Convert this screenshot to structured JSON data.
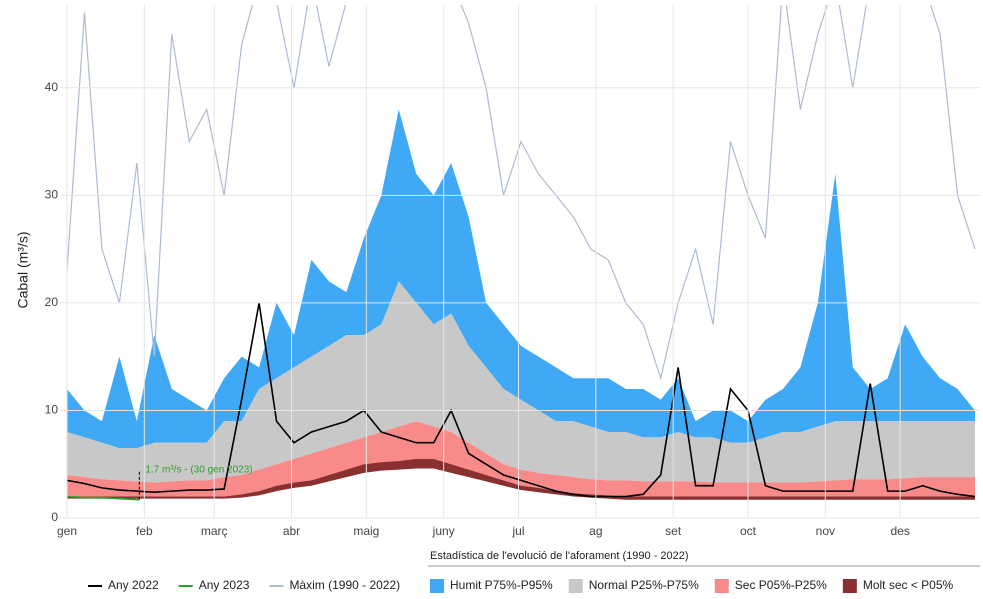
{
  "chart_data": {
    "type": "line",
    "y_label": "Cabal (m³/s)",
    "subtitle": "Estadística de l'evolució de l'aforament (1990 - 2022)",
    "x": [
      0,
      7,
      14,
      21,
      28,
      35,
      42,
      49,
      56,
      63,
      70,
      77,
      84,
      91,
      98,
      105,
      112,
      119,
      126,
      133,
      140,
      147,
      154,
      161,
      168,
      175,
      182,
      189,
      196,
      203,
      210,
      217,
      224,
      231,
      238,
      245,
      252,
      259,
      266,
      273,
      280,
      287,
      294,
      301,
      308,
      315,
      322,
      329,
      336,
      343,
      350,
      357,
      364
    ],
    "xlim": [
      0,
      364
    ],
    "xticks": [
      {
        "value": 0,
        "label": "gen"
      },
      {
        "value": 31,
        "label": "feb"
      },
      {
        "value": 59,
        "label": "març"
      },
      {
        "value": 90,
        "label": "abr"
      },
      {
        "value": 120,
        "label": "maig"
      },
      {
        "value": 151,
        "label": "juny"
      },
      {
        "value": 181,
        "label": "jul"
      },
      {
        "value": 212,
        "label": "ag"
      },
      {
        "value": 243,
        "label": "set"
      },
      {
        "value": 273,
        "label": "oct"
      },
      {
        "value": 304,
        "label": "nov"
      },
      {
        "value": 334,
        "label": "des"
      }
    ],
    "ylim": [
      0,
      47.7
    ],
    "yticks": [
      0,
      10,
      20,
      30,
      40
    ],
    "grid": true,
    "bands": [
      {
        "name": "Humit P75%-P95%",
        "color": "#3fa9f5",
        "lower": [
          8,
          7.5,
          7,
          6.5,
          6.5,
          7,
          7,
          7,
          7,
          9,
          9,
          12,
          13,
          14,
          15,
          16,
          17,
          17,
          18,
          22,
          20,
          18,
          19,
          16,
          14,
          12,
          11,
          10,
          9,
          9,
          8.5,
          8,
          8,
          7.5,
          7.5,
          8,
          7.5,
          7.5,
          7,
          7,
          7.5,
          8,
          8,
          8.5,
          9,
          9,
          9,
          9,
          9,
          9,
          9,
          9,
          9
        ],
        "upper": [
          12,
          10,
          9,
          15,
          9,
          17,
          12,
          11,
          10,
          13,
          15,
          14,
          20,
          17,
          24,
          22,
          21,
          26,
          30,
          38,
          32,
          30,
          33,
          28,
          20,
          18,
          16,
          15,
          14,
          13,
          13,
          13,
          12,
          12,
          11,
          13,
          9,
          10,
          10,
          9,
          11,
          12,
          14,
          20,
          32,
          14,
          12,
          13,
          18,
          15,
          13,
          12,
          10
        ]
      },
      {
        "name": "Normal P25%-P75%",
        "color": "#c8c8c8",
        "lower": [
          4,
          3.8,
          3.6,
          3.5,
          3.4,
          3.3,
          3.4,
          3.5,
          3.5,
          3.8,
          4,
          4.5,
          5,
          5.5,
          6,
          6.5,
          7,
          7.5,
          8,
          8.5,
          9,
          8.5,
          8,
          7,
          6,
          5,
          4.5,
          4.2,
          4,
          3.8,
          3.6,
          3.5,
          3.5,
          3.4,
          3.4,
          3.4,
          3.4,
          3.3,
          3.3,
          3.3,
          3.3,
          3.3,
          3.3,
          3.4,
          3.5,
          3.6,
          3.6,
          3.6,
          3.7,
          3.8,
          3.8,
          3.8,
          3.8
        ],
        "upper": [
          8,
          7.5,
          7,
          6.5,
          6.5,
          7,
          7,
          7,
          7,
          9,
          9,
          12,
          13,
          14,
          15,
          16,
          17,
          17,
          18,
          22,
          20,
          18,
          19,
          16,
          14,
          12,
          11,
          10,
          9,
          9,
          8.5,
          8,
          8,
          7.5,
          7.5,
          8,
          7.5,
          7.5,
          7,
          7,
          7.5,
          8,
          8,
          8.5,
          9,
          9,
          9,
          9,
          9,
          9,
          9,
          9,
          9
        ]
      },
      {
        "name": "Sec P05%-P25%",
        "color": "#f98a8a",
        "lower": [
          2,
          2,
          2,
          2,
          2,
          2,
          2,
          2,
          2,
          2,
          2.2,
          2.5,
          3,
          3.3,
          3.5,
          4,
          4.5,
          5,
          5.2,
          5.3,
          5.5,
          5.5,
          5,
          4.5,
          4,
          3.5,
          3,
          2.8,
          2.5,
          2.3,
          2.2,
          2.1,
          2,
          2,
          2,
          2,
          2,
          2,
          2,
          2,
          2,
          2,
          2,
          2,
          2,
          2,
          2,
          2,
          2,
          2,
          2,
          2,
          2
        ],
        "upper": [
          4,
          3.8,
          3.6,
          3.5,
          3.4,
          3.3,
          3.4,
          3.5,
          3.5,
          3.8,
          4,
          4.5,
          5,
          5.5,
          6,
          6.5,
          7,
          7.5,
          8,
          8.5,
          9,
          8.5,
          8,
          7,
          6,
          5,
          4.5,
          4.2,
          4,
          3.8,
          3.6,
          3.5,
          3.5,
          3.4,
          3.4,
          3.4,
          3.4,
          3.3,
          3.3,
          3.3,
          3.3,
          3.3,
          3.3,
          3.4,
          3.5,
          3.6,
          3.6,
          3.6,
          3.7,
          3.8,
          3.8,
          3.8,
          3.8
        ]
      },
      {
        "name": "Molt sec < P05%",
        "color": "#8b3030",
        "lower": [
          1.8,
          1.8,
          1.8,
          1.8,
          1.8,
          1.8,
          1.8,
          1.8,
          1.8,
          1.8,
          1.9,
          2.1,
          2.5,
          2.8,
          3,
          3.4,
          3.8,
          4.2,
          4.4,
          4.5,
          4.6,
          4.6,
          4.2,
          3.8,
          3.4,
          3,
          2.6,
          2.4,
          2.2,
          2,
          1.9,
          1.8,
          1.7,
          1.7,
          1.7,
          1.7,
          1.7,
          1.7,
          1.7,
          1.7,
          1.7,
          1.7,
          1.7,
          1.7,
          1.7,
          1.7,
          1.7,
          1.7,
          1.7,
          1.7,
          1.7,
          1.7,
          1.7
        ],
        "upper": [
          2,
          2,
          2,
          2,
          2,
          2,
          2,
          2,
          2,
          2,
          2.2,
          2.5,
          3,
          3.3,
          3.5,
          4,
          4.5,
          5,
          5.2,
          5.3,
          5.5,
          5.5,
          5,
          4.5,
          4,
          3.5,
          3,
          2.8,
          2.5,
          2.3,
          2.2,
          2.1,
          2,
          2,
          2,
          2,
          2,
          2,
          2,
          2,
          2,
          2,
          2,
          2,
          2,
          2,
          2,
          2,
          2,
          2,
          2,
          2,
          2
        ]
      }
    ],
    "series": [
      {
        "name": "Màxim (1990 - 2022)",
        "color": "#aebbd3",
        "values": [
          23,
          47,
          25,
          20,
          33,
          15,
          45,
          35,
          38,
          30,
          44,
          50,
          48,
          40,
          50,
          42,
          48,
          50,
          50,
          50,
          50,
          48,
          50,
          46,
          40,
          30,
          35,
          32,
          30,
          28,
          25,
          24,
          20,
          18,
          13,
          20,
          25,
          18,
          35,
          30,
          26,
          50,
          38,
          45,
          50,
          40,
          50,
          48,
          50,
          50,
          45,
          30,
          25
        ]
      },
      {
        "name": "Any 2022",
        "color": "#000000",
        "values": [
          3.5,
          3.2,
          2.8,
          2.6,
          2.5,
          2.4,
          2.5,
          2.6,
          2.6,
          2.7,
          11,
          20,
          9,
          7,
          8,
          8.5,
          9,
          10,
          8,
          7.5,
          7,
          7,
          10,
          6,
          5,
          4,
          3.5,
          3,
          2.5,
          2.2,
          2,
          2,
          2,
          2.2,
          4,
          14,
          3,
          3,
          12,
          10,
          3,
          2.5,
          2.5,
          2.5,
          2.5,
          2.5,
          12.5,
          2.5,
          2.5,
          3,
          2.5,
          2.2,
          2
        ]
      },
      {
        "name": "Any 2023",
        "color": "#2ca02c",
        "x": [
          0,
          7,
          14,
          21,
          29
        ],
        "values": [
          2,
          1.9,
          1.9,
          1.8,
          1.7
        ]
      }
    ],
    "annotation": {
      "label": "1.7 m³/s - (30 gen 2023)",
      "x": 29,
      "y": 1.7
    }
  }
}
